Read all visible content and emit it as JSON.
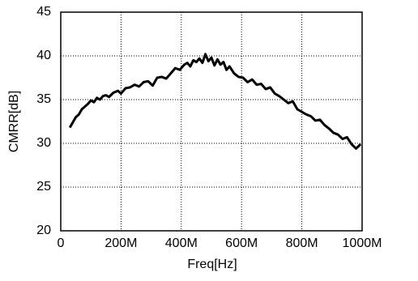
{
  "chart_data": {
    "type": "line",
    "xlabel": "Freq[Hz]",
    "ylabel": "CMRR[dB]",
    "x": [
      30000000,
      40000000,
      50000000,
      60000000,
      70000000,
      80000000,
      90000000,
      100000000,
      110000000,
      120000000,
      130000000,
      140000000,
      150000000,
      160000000,
      175000000,
      190000000,
      200000000,
      215000000,
      230000000,
      245000000,
      260000000,
      275000000,
      290000000,
      305000000,
      320000000,
      335000000,
      350000000,
      365000000,
      380000000,
      395000000,
      410000000,
      420000000,
      430000000,
      440000000,
      450000000,
      460000000,
      470000000,
      480000000,
      490000000,
      500000000,
      510000000,
      520000000,
      530000000,
      540000000,
      550000000,
      560000000,
      575000000,
      590000000,
      605000000,
      620000000,
      635000000,
      650000000,
      665000000,
      680000000,
      695000000,
      710000000,
      725000000,
      740000000,
      755000000,
      770000000,
      785000000,
      800000000,
      815000000,
      830000000,
      845000000,
      860000000,
      875000000,
      890000000,
      905000000,
      920000000,
      935000000,
      950000000,
      965000000,
      980000000,
      995000000
    ],
    "series": [
      {
        "color": "#000000",
        "values": [
          31.8,
          32.4,
          33.0,
          33.3,
          33.9,
          34.2,
          34.5,
          34.9,
          34.7,
          35.2,
          35.0,
          35.4,
          35.5,
          35.3,
          35.8,
          36.0,
          35.7,
          36.3,
          36.4,
          36.7,
          36.5,
          37.0,
          37.1,
          36.6,
          37.5,
          37.6,
          37.4,
          38.0,
          38.6,
          38.4,
          39.0,
          39.2,
          38.8,
          39.5,
          39.3,
          39.7,
          39.2,
          40.2,
          39.4,
          39.8,
          38.9,
          39.6,
          39.0,
          39.3,
          38.4,
          38.8,
          38.0,
          37.6,
          37.5,
          37.0,
          37.3,
          36.7,
          36.8,
          36.2,
          36.4,
          35.7,
          35.4,
          35.0,
          34.6,
          34.8,
          33.9,
          33.6,
          33.3,
          33.1,
          32.6,
          32.7,
          32.1,
          31.7,
          31.2,
          31.0,
          30.5,
          30.7,
          29.9,
          29.4,
          29.9
        ]
      }
    ],
    "xlim": [
      0,
      1000000000
    ],
    "xticks": [
      0,
      {
        "value": 200000000,
        "label": "200M"
      },
      {
        "value": 400000000,
        "label": "400M"
      },
      {
        "value": 600000000,
        "label": "600M"
      },
      {
        "value": 800000000,
        "label": "800M"
      },
      {
        "value": 1000000000,
        "label": "1000M"
      }
    ],
    "ylim": [
      20,
      45
    ],
    "yticks": [
      20,
      25,
      30,
      35,
      40,
      45
    ],
    "grid": true
  }
}
